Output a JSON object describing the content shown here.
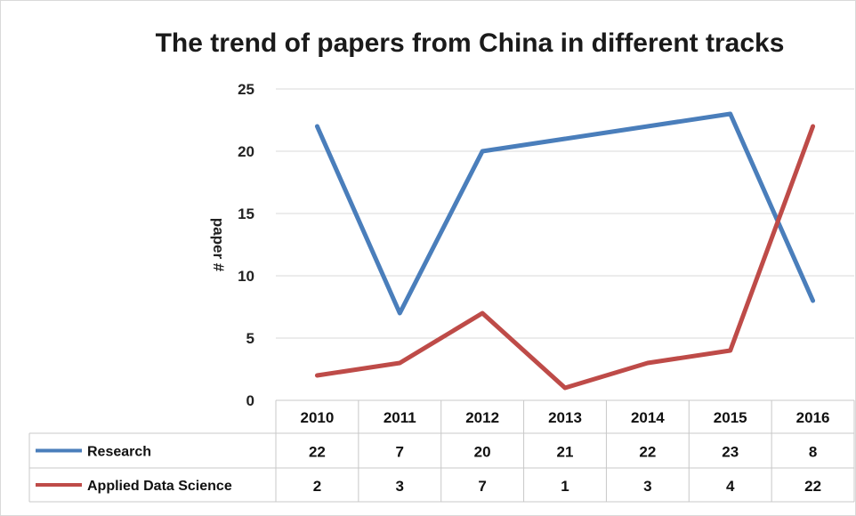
{
  "chart_data": {
    "type": "line",
    "title": "The trend of papers from China in different tracks",
    "xlabel": "",
    "ylabel": "paper #",
    "ylim": [
      0,
      25
    ],
    "yticks": [
      0,
      5,
      10,
      15,
      20,
      25
    ],
    "categories": [
      "2010",
      "2011",
      "2012",
      "2013",
      "2014",
      "2015",
      "2016"
    ],
    "grid": true,
    "legend": "data-table",
    "series": [
      {
        "name": "Research",
        "color": "#4a7ebb",
        "values": [
          22,
          7,
          20,
          21,
          22,
          23,
          8
        ]
      },
      {
        "name": "Applied Data Science",
        "color": "#be4b48",
        "values": [
          2,
          3,
          7,
          1,
          3,
          4,
          22
        ]
      }
    ]
  }
}
